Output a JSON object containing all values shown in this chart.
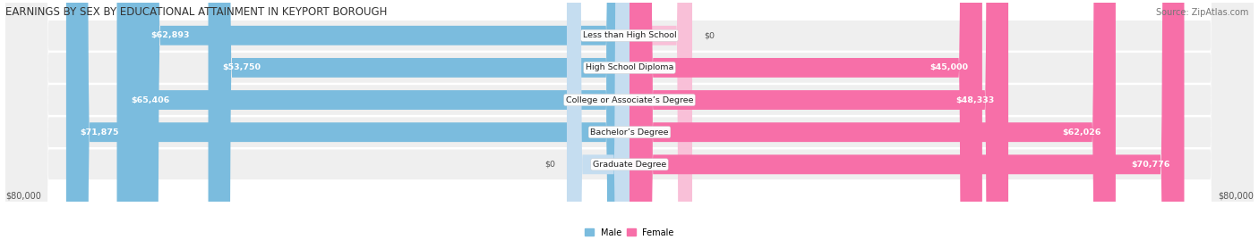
{
  "title": "EARNINGS BY SEX BY EDUCATIONAL ATTAINMENT IN KEYPORT BOROUGH",
  "source": "Source: ZipAtlas.com",
  "categories": [
    "Less than High School",
    "High School Diploma",
    "College or Associate’s Degree",
    "Bachelor’s Degree",
    "Graduate Degree"
  ],
  "male_values": [
    62893,
    53750,
    65406,
    71875,
    0
  ],
  "female_values": [
    0,
    45000,
    48333,
    62026,
    70776
  ],
  "male_color": "#7bbcde",
  "female_color": "#f76fa8",
  "male_color_ghost": "#c5ddf0",
  "female_color_ghost": "#f9c0d8",
  "bg_row_color": "#efefef",
  "bg_row_color_alt": "#e8e8e8",
  "max_val": 80000,
  "male_label": "Male",
  "female_label": "Female",
  "x_left_label": "$80,000",
  "x_right_label": "$80,000",
  "title_fontsize": 8.5,
  "source_fontsize": 7,
  "bar_label_fontsize": 6.8,
  "category_fontsize": 6.8,
  "axis_label_fontsize": 7
}
